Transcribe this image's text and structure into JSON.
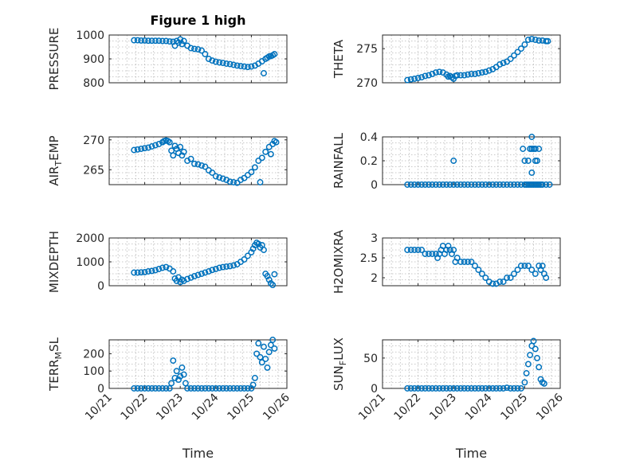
{
  "figure_title": "Figure 1 high",
  "colors": {
    "marker": "#0072BD",
    "axis": "#262626",
    "grid": "#b8b8b8"
  },
  "x_tick_labels": [
    "10/21",
    "10/22",
    "10/23",
    "10/24",
    "10/25",
    "10/26"
  ],
  "x_label": "Time",
  "chart_data": [
    {
      "id": "pressure",
      "type": "scatter",
      "title": "Figure 1 high",
      "ylabel_parts": [
        "PRESSURE"
      ],
      "xlabel": "",
      "ylim": [
        800,
        1000
      ],
      "yticks": [
        800,
        900,
        1000
      ],
      "xlim": [
        21,
        26
      ],
      "x": [
        21.7,
        21.8,
        21.9,
        22.0,
        22.1,
        22.2,
        22.3,
        22.4,
        22.5,
        22.6,
        22.7,
        22.8,
        22.85,
        22.9,
        22.95,
        23.0,
        23.05,
        23.1,
        23.2,
        23.3,
        23.4,
        23.5,
        23.6,
        23.7,
        23.8,
        23.9,
        24.0,
        24.1,
        24.2,
        24.3,
        24.4,
        24.5,
        24.6,
        24.7,
        24.8,
        24.9,
        25.0,
        25.1,
        25.2,
        25.3,
        25.35,
        25.4,
        25.45,
        25.5,
        25.55,
        25.6,
        25.65
      ],
      "y": [
        978,
        978,
        977,
        977,
        976,
        976,
        976,
        976,
        975,
        975,
        973,
        972,
        955,
        975,
        968,
        982,
        962,
        975,
        955,
        945,
        942,
        940,
        935,
        920,
        900,
        893,
        888,
        885,
        883,
        880,
        878,
        875,
        872,
        870,
        868,
        866,
        868,
        872,
        880,
        890,
        840,
        900,
        905,
        910,
        912,
        915,
        920
      ]
    },
    {
      "id": "theta",
      "type": "scatter",
      "ylabel_parts": [
        "THETA"
      ],
      "xlabel": "",
      "ylim": [
        270,
        277
      ],
      "yticks": [
        270,
        275
      ],
      "xlim": [
        21,
        26
      ],
      "x": [
        21.7,
        21.8,
        21.9,
        22.0,
        22.1,
        22.2,
        22.3,
        22.4,
        22.5,
        22.6,
        22.7,
        22.8,
        22.85,
        22.9,
        22.95,
        23.0,
        23.05,
        23.1,
        23.2,
        23.3,
        23.4,
        23.5,
        23.6,
        23.7,
        23.8,
        23.9,
        24.0,
        24.1,
        24.2,
        24.3,
        24.4,
        24.5,
        24.6,
        24.7,
        24.8,
        24.9,
        25.0,
        25.1,
        25.2,
        25.3,
        25.4,
        25.5,
        25.6,
        25.65
      ],
      "y": [
        270.4,
        270.5,
        270.6,
        270.7,
        270.8,
        271.0,
        271.1,
        271.3,
        271.5,
        271.6,
        271.5,
        271.2,
        270.9,
        271.0,
        270.8,
        270.6,
        271.0,
        271.1,
        271.1,
        271.1,
        271.2,
        271.3,
        271.3,
        271.4,
        271.5,
        271.6,
        271.8,
        272.0,
        272.3,
        272.7,
        272.9,
        273.1,
        273.5,
        274.0,
        274.5,
        275.0,
        275.6,
        276.3,
        276.4,
        276.3,
        276.2,
        276.2,
        276.1,
        276.1
      ]
    },
    {
      "id": "air_temp",
      "type": "scatter",
      "ylabel_parts": [
        "AIR",
        "T",
        "EMP"
      ],
      "xlabel": "",
      "ylim": [
        262.5,
        270.5
      ],
      "yticks": [
        265,
        270
      ],
      "xlim": [
        21,
        26
      ],
      "x": [
        21.7,
        21.8,
        21.9,
        22.0,
        22.1,
        22.2,
        22.3,
        22.4,
        22.5,
        22.55,
        22.6,
        22.65,
        22.7,
        22.75,
        22.8,
        22.85,
        22.9,
        22.95,
        23.0,
        23.05,
        23.1,
        23.2,
        23.3,
        23.4,
        23.5,
        23.6,
        23.7,
        23.8,
        23.9,
        24.0,
        24.1,
        24.2,
        24.3,
        24.4,
        24.5,
        24.6,
        24.7,
        24.8,
        24.9,
        25.0,
        25.1,
        25.2,
        25.25,
        25.3,
        25.4,
        25.5,
        25.55,
        25.6,
        25.65,
        25.7
      ],
      "y": [
        268.3,
        268.4,
        268.5,
        268.6,
        268.7,
        268.9,
        269.1,
        269.3,
        269.6,
        269.8,
        269.9,
        269.8,
        269.6,
        268.2,
        267.4,
        269.0,
        268.5,
        267.8,
        268.8,
        267.4,
        268.0,
        266.5,
        266.8,
        266.0,
        265.9,
        265.7,
        265.5,
        264.9,
        264.5,
        263.9,
        263.7,
        263.5,
        263.3,
        263.0,
        262.9,
        262.8,
        263.3,
        263.6,
        264.1,
        264.6,
        265.4,
        266.5,
        262.9,
        267.0,
        268.0,
        268.8,
        267.6,
        269.3,
        269.8,
        269.6
      ]
    },
    {
      "id": "rainfall",
      "type": "scatter",
      "ylabel_parts": [
        "RAINFALL"
      ],
      "xlabel": "",
      "ylim": [
        0,
        0.4
      ],
      "yticks": [
        0,
        0.2,
        0.4
      ],
      "xlim": [
        21,
        26
      ],
      "x": [
        21.7,
        21.8,
        21.9,
        22.0,
        22.1,
        22.2,
        22.3,
        22.4,
        22.5,
        22.6,
        22.7,
        22.8,
        22.9,
        23.0,
        23.1,
        23.2,
        23.3,
        23.4,
        23.5,
        23.6,
        23.7,
        23.8,
        23.9,
        24.0,
        24.1,
        24.2,
        24.3,
        24.4,
        24.5,
        24.6,
        24.7,
        24.8,
        24.9,
        25.0,
        25.05,
        25.1,
        25.15,
        25.2,
        25.25,
        25.3,
        25.35,
        25.4,
        25.45,
        25.5,
        25.6,
        25.7,
        23.0,
        24.95,
        25.0,
        25.1,
        25.15,
        25.2,
        25.2,
        25.25,
        25.3,
        25.3,
        25.35,
        25.4,
        25.2
      ],
      "y": [
        0,
        0,
        0,
        0,
        0,
        0,
        0,
        0,
        0,
        0,
        0,
        0,
        0,
        0,
        0,
        0,
        0,
        0,
        0,
        0,
        0,
        0,
        0,
        0,
        0,
        0,
        0,
        0,
        0,
        0,
        0,
        0,
        0,
        0,
        0,
        0,
        0,
        0,
        0,
        0,
        0,
        0,
        0,
        0,
        0,
        0,
        0.2,
        0.3,
        0.2,
        0.2,
        0.3,
        0.4,
        0.3,
        0.3,
        0.2,
        0.3,
        0.2,
        0.3,
        0.1
      ]
    },
    {
      "id": "mixdepth",
      "type": "scatter",
      "ylabel_parts": [
        "MIXDEPTH"
      ],
      "xlabel": "",
      "ylim": [
        0,
        2000
      ],
      "yticks": [
        0,
        1000,
        2000
      ],
      "xlim": [
        21,
        26
      ],
      "x": [
        21.7,
        21.8,
        21.9,
        22.0,
        22.1,
        22.2,
        22.3,
        22.4,
        22.5,
        22.6,
        22.7,
        22.8,
        22.85,
        22.9,
        22.95,
        23.0,
        23.05,
        23.1,
        23.2,
        23.3,
        23.4,
        23.5,
        23.6,
        23.7,
        23.8,
        23.9,
        24.0,
        24.1,
        24.2,
        24.3,
        24.4,
        24.5,
        24.6,
        24.7,
        24.8,
        24.9,
        25.0,
        25.05,
        25.1,
        25.15,
        25.2,
        25.25,
        25.3,
        25.35,
        25.4,
        25.45,
        25.5,
        25.55,
        25.6,
        25.65
      ],
      "y": [
        550,
        550,
        560,
        570,
        600,
        620,
        650,
        700,
        750,
        780,
        720,
        600,
        300,
        200,
        350,
        150,
        250,
        200,
        280,
        340,
        400,
        450,
        500,
        550,
        600,
        660,
        700,
        750,
        780,
        800,
        820,
        850,
        900,
        1000,
        1100,
        1250,
        1400,
        1550,
        1700,
        1800,
        1750,
        1600,
        1700,
        1500,
        500,
        400,
        250,
        100,
        30,
        480
      ]
    },
    {
      "id": "h2omixra",
      "type": "scatter",
      "ylabel_parts": [
        "H2OMIXRA"
      ],
      "xlabel": "",
      "ylim": [
        1.8,
        3
      ],
      "yticks": [
        2,
        2.5,
        3
      ],
      "xlim": [
        21,
        26
      ],
      "x": [
        21.7,
        21.8,
        21.9,
        22.0,
        22.1,
        22.2,
        22.3,
        22.4,
        22.5,
        22.55,
        22.6,
        22.65,
        22.7,
        22.75,
        22.8,
        22.85,
        22.9,
        22.95,
        23.0,
        23.05,
        23.1,
        23.2,
        23.3,
        23.4,
        23.5,
        23.6,
        23.7,
        23.8,
        23.9,
        24.0,
        24.1,
        24.2,
        24.3,
        24.4,
        24.5,
        24.6,
        24.7,
        24.8,
        24.9,
        25.0,
        25.1,
        25.2,
        25.3,
        25.4,
        25.45,
        25.5,
        25.55,
        25.6
      ],
      "y": [
        2.7,
        2.7,
        2.7,
        2.7,
        2.7,
        2.6,
        2.6,
        2.6,
        2.6,
        2.5,
        2.6,
        2.7,
        2.8,
        2.6,
        2.7,
        2.8,
        2.7,
        2.6,
        2.7,
        2.4,
        2.5,
        2.4,
        2.4,
        2.4,
        2.4,
        2.3,
        2.2,
        2.1,
        2.0,
        1.9,
        1.85,
        1.85,
        1.9,
        1.9,
        2.0,
        2.0,
        2.1,
        2.2,
        2.3,
        2.3,
        2.3,
        2.2,
        2.1,
        2.3,
        2.2,
        2.3,
        2.1,
        2.0
      ]
    },
    {
      "id": "terr_msl",
      "type": "scatter",
      "ylabel_parts": [
        "TERR",
        "M",
        "SL"
      ],
      "xlabel": "Time",
      "ylim": [
        0,
        280
      ],
      "yticks": [
        0,
        100,
        200
      ],
      "xlim": [
        21,
        26
      ],
      "x": [
        21.7,
        21.8,
        21.9,
        22.0,
        22.1,
        22.2,
        22.3,
        22.4,
        22.5,
        22.6,
        22.7,
        22.75,
        22.8,
        22.85,
        22.9,
        22.95,
        23.0,
        23.05,
        23.1,
        23.15,
        23.2,
        23.3,
        23.4,
        23.5,
        23.6,
        23.7,
        23.8,
        23.9,
        24.0,
        24.1,
        24.2,
        24.3,
        24.4,
        24.5,
        24.6,
        24.7,
        24.8,
        24.9,
        25.0,
        25.05,
        25.1,
        25.15,
        25.2,
        25.25,
        25.3,
        25.35,
        25.4,
        25.45,
        25.5,
        25.55,
        25.6,
        25.65
      ],
      "y": [
        0,
        0,
        0,
        0,
        0,
        0,
        0,
        0,
        0,
        0,
        0,
        30,
        160,
        60,
        100,
        50,
        70,
        120,
        80,
        30,
        0,
        0,
        0,
        0,
        0,
        0,
        0,
        0,
        0,
        0,
        0,
        0,
        0,
        0,
        0,
        0,
        0,
        0,
        0,
        20,
        60,
        200,
        260,
        180,
        150,
        240,
        170,
        120,
        210,
        250,
        280,
        230
      ]
    },
    {
      "id": "sun_flux",
      "type": "scatter",
      "ylabel_parts": [
        "SUN",
        "F",
        "LUX"
      ],
      "xlabel": "Time",
      "ylim": [
        0,
        80
      ],
      "yticks": [
        0,
        50
      ],
      "xlim": [
        21,
        26
      ],
      "x": [
        21.7,
        21.8,
        21.9,
        22.0,
        22.1,
        22.2,
        22.3,
        22.4,
        22.5,
        22.6,
        22.7,
        22.8,
        22.9,
        23.0,
        23.1,
        23.2,
        23.3,
        23.4,
        23.5,
        23.6,
        23.7,
        23.8,
        23.9,
        24.0,
        24.1,
        24.2,
        24.3,
        24.4,
        24.5,
        24.6,
        24.7,
        24.8,
        24.9,
        25.0,
        25.05,
        25.1,
        25.15,
        25.2,
        25.25,
        25.3,
        25.35,
        25.4,
        25.45,
        25.5,
        25.55
      ],
      "y": [
        0,
        0,
        0,
        0,
        0,
        0,
        0,
        0,
        0,
        0,
        0,
        0,
        0,
        0,
        0,
        0,
        0,
        0,
        0,
        0,
        0,
        0,
        0,
        0,
        0,
        0,
        0,
        0,
        1,
        0,
        0,
        0,
        0,
        10,
        25,
        40,
        55,
        70,
        78,
        65,
        50,
        35,
        15,
        10,
        8
      ]
    }
  ]
}
